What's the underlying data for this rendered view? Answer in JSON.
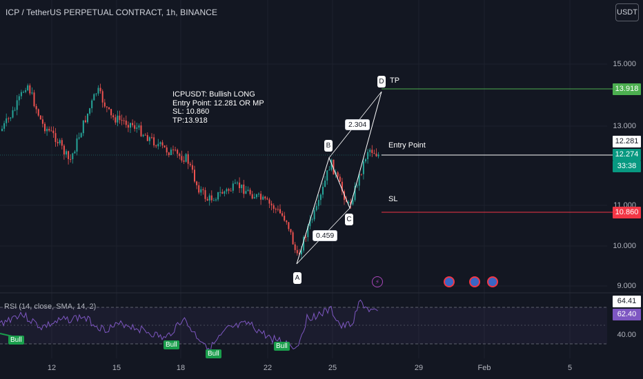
{
  "title": "ICP / TetherUS PERPETUAL CONTRACT, 1h, BINANCE",
  "currency_button": "USDT",
  "price_axis": [
    "15.000",
    "13.000",
    "11.000",
    "10.000",
    "9.000"
  ],
  "time_axis": [
    "12",
    "15",
    "18",
    "22",
    "25",
    "29",
    "Feb",
    "5"
  ],
  "note": "ICPUSDT: Bullish LONG\nEntry Point: 12.281 OR MP\nSL: 10.860\nTP:13.918",
  "pattern": {
    "points": [
      "A",
      "B",
      "C",
      "D"
    ],
    "ratios": [
      "0.459",
      "2.304"
    ]
  },
  "levels": {
    "tp_label": "TP",
    "entry_label": "Entry Point",
    "sl_label": "SL"
  },
  "badges": {
    "tp": "13.918",
    "entry": "12.281",
    "last": "12.274",
    "countdown": "33:38",
    "sl": "10.860"
  },
  "colors": {
    "bg": "#131722",
    "up": "#26a69a",
    "down": "#ef5350",
    "tp": "#4caf50",
    "sl": "#f23645",
    "rsi": "#7e57c2"
  },
  "rsi": {
    "title": "RSI (14, close, SMA, 14, 2)",
    "axis": [
      "40.00"
    ],
    "value_badge": "64.41",
    "sma_badge": "62.40",
    "signal_label": "Bull"
  },
  "icons": [
    "lightning-event-icon",
    "us-flag-event-icon"
  ]
}
